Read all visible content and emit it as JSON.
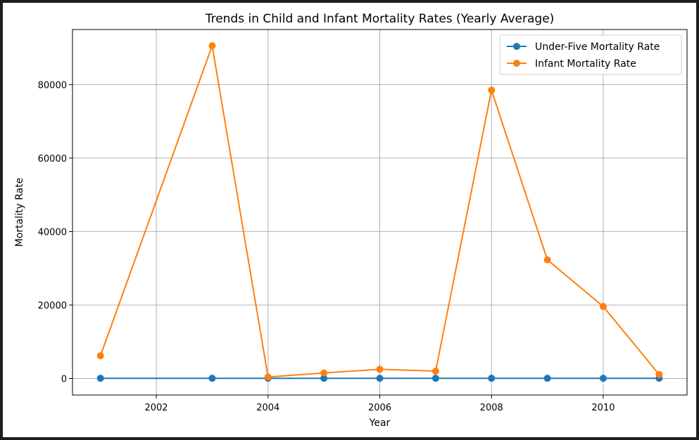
{
  "chart_data": {
    "type": "line",
    "title": "Trends in Child and Infant Mortality Rates (Yearly Average)",
    "xlabel": "Year",
    "ylabel": "Mortality Rate",
    "x": [
      2001,
      2003,
      2004,
      2005,
      2006,
      2007,
      2008,
      2009,
      2010,
      2011
    ],
    "xlim": [
      2000.5,
      2011.5
    ],
    "ylim": [
      -4500,
      95000
    ],
    "xticks": [
      2002,
      2004,
      2006,
      2008,
      2010
    ],
    "yticks": [
      0,
      20000,
      40000,
      60000,
      80000
    ],
    "grid": true,
    "legend_position": "top-right",
    "series": [
      {
        "name": "Under-Five Mortality Rate",
        "color": "#1f77b4",
        "marker": "circle",
        "values": [
          60,
          60,
          60,
          60,
          60,
          60,
          60,
          60,
          60,
          60
        ]
      },
      {
        "name": "Infant Mortality Rate",
        "color": "#ff7f0e",
        "marker": "circle",
        "values": [
          6200,
          90600,
          400,
          1500,
          2500,
          2000,
          78500,
          32300,
          19600,
          1100
        ]
      }
    ]
  }
}
